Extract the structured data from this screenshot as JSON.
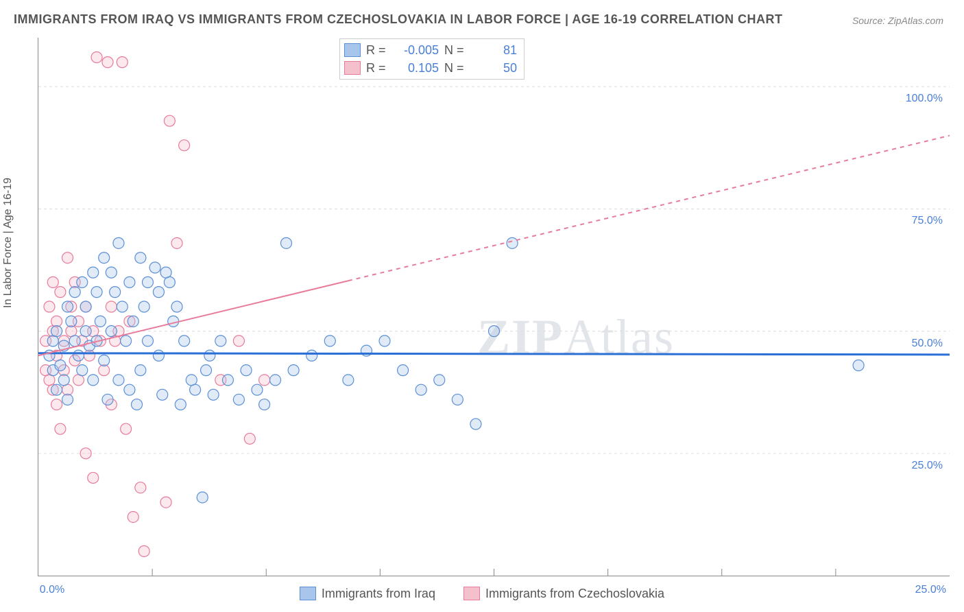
{
  "title": "IMMIGRANTS FROM IRAQ VS IMMIGRANTS FROM CZECHOSLOVAKIA IN LABOR FORCE | AGE 16-19 CORRELATION CHART",
  "source": "Source: ZipAtlas.com",
  "y_axis_label": "In Labor Force | Age 16-19",
  "watermark_a": "ZIP",
  "watermark_b": "Atlas",
  "chart": {
    "type": "scatter",
    "background_color": "#ffffff",
    "grid_color": "#dddddd",
    "axis_color": "#888888",
    "tick_label_color": "#4a7fd8",
    "xlim": [
      0,
      25
    ],
    "ylim": [
      0,
      110
    ],
    "y_ticks": [
      25,
      50,
      75,
      100
    ],
    "y_tick_labels": [
      "25.0%",
      "50.0%",
      "75.0%",
      "100.0%"
    ],
    "x_ticks": [
      0,
      25
    ],
    "x_tick_labels": [
      "0.0%",
      "25.0%"
    ],
    "x_minor_ticks": [
      3.125,
      6.25,
      9.375,
      12.5,
      15.625,
      18.75,
      21.875
    ],
    "marker_radius": 8,
    "marker_stroke_width": 1.2,
    "marker_fill_opacity": 0.35,
    "title_fontsize": 18,
    "label_fontsize": 16,
    "series": [
      {
        "name": "Immigrants from Iraq",
        "color_fill": "#a8c5eb",
        "color_stroke": "#5b8fd6",
        "R": "-0.005",
        "N": "81",
        "trend": {
          "y_at_x0": 45.5,
          "y_at_x25": 45.2,
          "color": "#2a6fd6",
          "width": 3,
          "solid_until_x": 25
        },
        "points": [
          [
            0.3,
            45
          ],
          [
            0.4,
            42
          ],
          [
            0.4,
            48
          ],
          [
            0.5,
            38
          ],
          [
            0.5,
            50
          ],
          [
            0.6,
            43
          ],
          [
            0.7,
            47
          ],
          [
            0.7,
            40
          ],
          [
            0.8,
            55
          ],
          [
            0.8,
            36
          ],
          [
            0.9,
            52
          ],
          [
            1.0,
            48
          ],
          [
            1.0,
            58
          ],
          [
            1.1,
            45
          ],
          [
            1.2,
            60
          ],
          [
            1.2,
            42
          ],
          [
            1.3,
            50
          ],
          [
            1.3,
            55
          ],
          [
            1.4,
            47
          ],
          [
            1.5,
            40
          ],
          [
            1.5,
            62
          ],
          [
            1.6,
            48
          ],
          [
            1.6,
            58
          ],
          [
            1.7,
            52
          ],
          [
            1.8,
            44
          ],
          [
            1.8,
            65
          ],
          [
            1.9,
            36
          ],
          [
            2.0,
            50
          ],
          [
            2.0,
            62
          ],
          [
            2.1,
            58
          ],
          [
            2.2,
            68
          ],
          [
            2.2,
            40
          ],
          [
            2.3,
            55
          ],
          [
            2.4,
            48
          ],
          [
            2.5,
            60
          ],
          [
            2.5,
            38
          ],
          [
            2.6,
            52
          ],
          [
            2.7,
            35
          ],
          [
            2.8,
            65
          ],
          [
            2.8,
            42
          ],
          [
            2.9,
            55
          ],
          [
            3.0,
            48
          ],
          [
            3.0,
            60
          ],
          [
            3.2,
            63
          ],
          [
            3.3,
            58
          ],
          [
            3.3,
            45
          ],
          [
            3.4,
            37
          ],
          [
            3.5,
            62
          ],
          [
            3.6,
            60
          ],
          [
            3.7,
            52
          ],
          [
            3.8,
            55
          ],
          [
            3.9,
            35
          ],
          [
            4.0,
            48
          ],
          [
            4.2,
            40
          ],
          [
            4.3,
            38
          ],
          [
            4.5,
            16
          ],
          [
            4.6,
            42
          ],
          [
            4.7,
            45
          ],
          [
            4.8,
            37
          ],
          [
            5.0,
            48
          ],
          [
            5.2,
            40
          ],
          [
            5.5,
            36
          ],
          [
            5.7,
            42
          ],
          [
            6.0,
            38
          ],
          [
            6.2,
            35
          ],
          [
            6.5,
            40
          ],
          [
            6.8,
            68
          ],
          [
            7.0,
            42
          ],
          [
            7.5,
            45
          ],
          [
            8.0,
            48
          ],
          [
            8.5,
            40
          ],
          [
            9.0,
            46
          ],
          [
            9.5,
            48
          ],
          [
            10.0,
            42
          ],
          [
            10.5,
            38
          ],
          [
            11.0,
            40
          ],
          [
            11.5,
            36
          ],
          [
            12.0,
            31
          ],
          [
            12.5,
            50
          ],
          [
            13.0,
            68
          ],
          [
            22.5,
            43
          ]
        ]
      },
      {
        "name": "Immigrants from Czechoslovakia",
        "color_fill": "#f4c0cc",
        "color_stroke": "#e87b9a",
        "R": "0.105",
        "N": "50",
        "trend": {
          "y_at_x0": 45,
          "y_at_x25": 90,
          "color": "#e87b9a",
          "width": 2,
          "solid_until_x": 8.5
        },
        "points": [
          [
            0.2,
            42
          ],
          [
            0.2,
            48
          ],
          [
            0.3,
            40
          ],
          [
            0.3,
            55
          ],
          [
            0.4,
            38
          ],
          [
            0.4,
            50
          ],
          [
            0.4,
            60
          ],
          [
            0.5,
            35
          ],
          [
            0.5,
            45
          ],
          [
            0.5,
            52
          ],
          [
            0.6,
            30
          ],
          [
            0.6,
            58
          ],
          [
            0.7,
            48
          ],
          [
            0.7,
            42
          ],
          [
            0.8,
            65
          ],
          [
            0.8,
            38
          ],
          [
            0.9,
            50
          ],
          [
            0.9,
            55
          ],
          [
            1.0,
            44
          ],
          [
            1.0,
            60
          ],
          [
            1.1,
            40
          ],
          [
            1.1,
            52
          ],
          [
            1.2,
            48
          ],
          [
            1.3,
            55
          ],
          [
            1.3,
            25
          ],
          [
            1.4,
            45
          ],
          [
            1.5,
            20
          ],
          [
            1.5,
            50
          ],
          [
            1.6,
            106
          ],
          [
            1.7,
            48
          ],
          [
            1.8,
            42
          ],
          [
            1.9,
            105
          ],
          [
            2.0,
            55
          ],
          [
            2.0,
            35
          ],
          [
            2.1,
            48
          ],
          [
            2.2,
            50
          ],
          [
            2.3,
            105
          ],
          [
            2.4,
            30
          ],
          [
            2.5,
            52
          ],
          [
            2.6,
            12
          ],
          [
            2.8,
            18
          ],
          [
            2.9,
            5
          ],
          [
            3.5,
            15
          ],
          [
            3.6,
            93
          ],
          [
            3.8,
            68
          ],
          [
            4.0,
            88
          ],
          [
            5.0,
            40
          ],
          [
            5.5,
            48
          ],
          [
            5.8,
            28
          ],
          [
            6.2,
            40
          ]
        ]
      }
    ]
  },
  "stats_box": {
    "R_label": "R =",
    "N_label": "N ="
  },
  "bottom_legend": {
    "items": [
      "Immigrants from Iraq",
      "Immigrants from Czechoslovakia"
    ]
  }
}
